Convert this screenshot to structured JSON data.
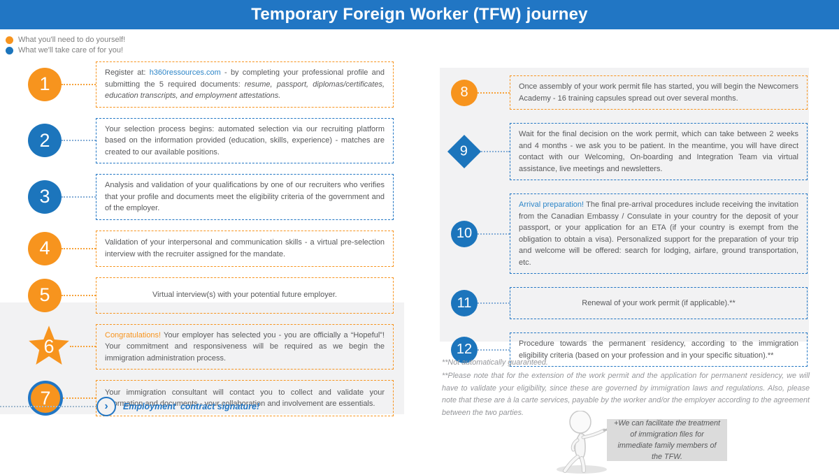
{
  "header": {
    "title": "Temporary Foreign Worker (TFW) journey"
  },
  "colors": {
    "orange": "#F7941E",
    "blue": "#1C75BC",
    "header_blue": "#2176C4",
    "panel_gray": "#F2F2F3"
  },
  "legend": {
    "items": [
      {
        "dot": "orange-dot-icon",
        "color": "#F7941E",
        "label": "What you'll need to do yourself!"
      },
      {
        "dot": "blue-dot-icon",
        "color": "#1C75BC",
        "label": "What we'll take care of for you!"
      }
    ]
  },
  "steps": {
    "left": [
      {
        "num": "1",
        "marker": "circle-orange",
        "box": "orange",
        "segments": [
          {
            "t": "Register at: ",
            "s": "normal"
          },
          {
            "t": "h360ressources.com",
            "s": "link"
          },
          {
            "t": " - by completing your professional profile and submitting the 5 required documents: ",
            "s": "normal"
          },
          {
            "t": "resume, passport, diplomas/certificates, education transcripts, and employment attestations.",
            "s": "italic"
          }
        ]
      },
      {
        "num": "2",
        "marker": "circle-blue",
        "box": "blue",
        "segments": [
          {
            "t": "Your selection process begins: automated selection via our recruiting platform based on the information provided (education, skills, experience) - matches are created to our available positions.",
            "s": "normal"
          }
        ]
      },
      {
        "num": "3",
        "marker": "circle-blue",
        "box": "blue",
        "segments": [
          {
            "t": "Analysis and validation of your qualifications by one of our recruiters who verifies that your profile and documents meet the eligibility criteria of the government and of the employer.",
            "s": "normal"
          }
        ]
      },
      {
        "num": "4",
        "marker": "circle-orange",
        "box": "orange",
        "segments": [
          {
            "t": "Validation of your interpersonal and communication skills - a virtual pre-selection interview with the recruiter assigned for the mandate.",
            "s": "normal"
          }
        ]
      },
      {
        "num": "5",
        "marker": "circle-orange",
        "box": "orange",
        "segments": [
          {
            "t": "Virtual interview(s) with your potential future employer.",
            "s": "normal"
          }
        ]
      },
      {
        "num": "6",
        "marker": "star-orange",
        "box": "orange",
        "segments": [
          {
            "t": "Congratulations!",
            "s": "orange"
          },
          {
            "t": " Your employer has selected you - you are officially a “Hopeful”! Your commitment and responsiveness will be required as we begin the immigration administration process.",
            "s": "normal"
          }
        ]
      },
      {
        "num": "7",
        "marker": "circle-orange-ring",
        "box": "orange",
        "segments": [
          {
            "t": "Your immigration consultant will contact you to collect and validate your information and documents - your collaboration and involvement are essentials.",
            "s": "normal"
          }
        ]
      }
    ],
    "right": [
      {
        "num": "8",
        "marker": "circle-orange",
        "box": "orange",
        "segments": [
          {
            "t": "Once assembly of your work permit file has started, you will begin the Newcomers Academy - 16 training capsules spread out over several months.",
            "s": "normal"
          }
        ]
      },
      {
        "num": "9",
        "marker": "diamond-blue",
        "box": "blue",
        "segments": [
          {
            "t": "Wait for the final decision on the work permit, which can take between 2 weeks and 4 months - we ask you to be patient. In the meantime, you will have direct contact with our Welcoming, On-boarding and Integration Team via virtual assistance, live meetings and newsletters.",
            "s": "normal"
          }
        ]
      },
      {
        "num": "10",
        "marker": "circle-blue",
        "box": "blue",
        "segments": [
          {
            "t": "Arrival preparation!",
            "s": "blue"
          },
          {
            "t": " The final pre-arrival procedures include receiving the invitation from the Canadian Embassy / Consulate in your country for the deposit of your passport, or your application for an ETA (if your country is exempt from the obligation to obtain a visa). Personalized support for the preparation of your trip and welcome will be offered: search for lodging, airfare, ground transportation, etc.",
            "s": "normal"
          }
        ]
      },
      {
        "num": "11",
        "marker": "circle-blue",
        "box": "blue",
        "segments": [
          {
            "t": "Renewal of your work permit (if applicable).**",
            "s": "normal"
          }
        ]
      },
      {
        "num": "12",
        "marker": "circle-blue",
        "box": "blue",
        "segments": [
          {
            "t": "Procedure towards the permanent residency, according to the immigration eligibility criteria (based on your profession and in your specific situation).**",
            "s": "normal"
          }
        ]
      }
    ]
  },
  "milestone": {
    "icon": "chevron-right-icon",
    "chevron": "›",
    "label": "Employment  contract signature!"
  },
  "footnotes": [
    "**Not automatically guaranteed.",
    "**Please note that for  the extension of the work permit and the application for permanent residency, we will have to validate your eligibility, since these are governed by immigration laws and regulations. Also, please note that these are à la carte services, payable by the worker and/or the employer according to the agreement between the two parties."
  ],
  "callout": {
    "text": "+We can facilitate the treatment of immigration files for immediate family members of the TFW."
  }
}
